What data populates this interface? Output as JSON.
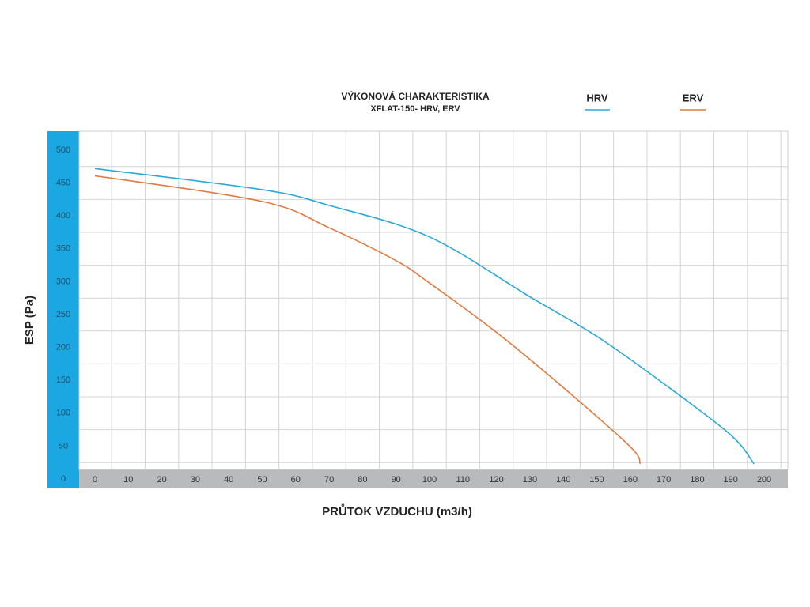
{
  "chart_data": {
    "type": "line",
    "title": "VÝKONOVÁ CHARAKTERISTIKA",
    "subtitle": "XFLAT-150- HRV, ERV",
    "x_label": "PRŮTOK VZDUCHU (m3/h)",
    "y_label": "ESP (Pa)",
    "xlim": [
      0,
      200
    ],
    "ylim": [
      0,
      500
    ],
    "xticks": [
      0,
      10,
      20,
      30,
      40,
      50,
      60,
      70,
      80,
      90,
      100,
      110,
      120,
      130,
      140,
      150,
      160,
      170,
      180,
      190,
      200
    ],
    "yticks": [
      0,
      50,
      100,
      150,
      200,
      250,
      300,
      350,
      400,
      450,
      500
    ],
    "grid": true,
    "legend": "top-right",
    "series": [
      {
        "name": "HRV",
        "color": "#2aa8d8",
        "x": [
          0,
          50,
          70,
          100,
          130,
          150,
          170,
          190,
          197
        ],
        "values": [
          472,
          440,
          416,
          368,
          277,
          217,
          145,
          67,
          23
        ]
      },
      {
        "name": "ERV",
        "color": "#e07b3f",
        "x": [
          0,
          50,
          70,
          90,
          100,
          120,
          140,
          160,
          163
        ],
        "values": [
          461,
          422,
          382,
          332,
          298,
          223,
          139,
          49,
          23
        ]
      }
    ]
  }
}
